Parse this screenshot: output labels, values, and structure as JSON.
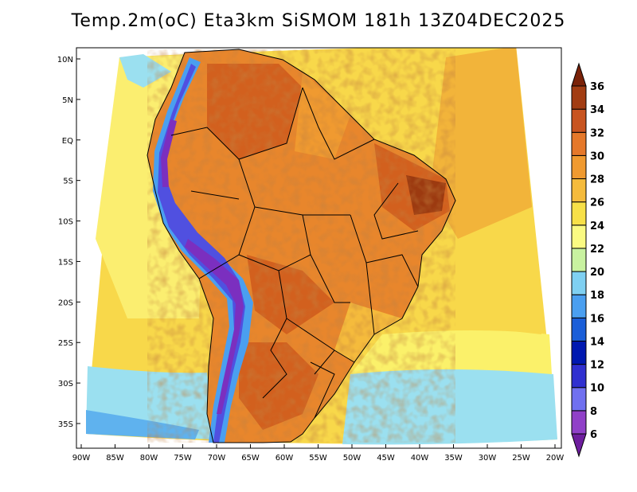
{
  "title": "Temp.2m(oC) Eta3km SiSMOM 181h 13Z04DEC2025",
  "colors": {
    "ocean_warm": "#f2b43a",
    "ocean_mid": "#f8d84a",
    "ocean_cool": "#fbf16a",
    "ocean_cold": "#9be0f0",
    "ocean_colder": "#5fb2ee",
    "land_hot": "#e8862c",
    "land_hotter": "#d2601e",
    "land_hottest": "#9c3a10",
    "andes_cold": "#7b2fbf",
    "andes_mid": "#5050e0",
    "border": "#000000"
  },
  "axes": {
    "x_ticks": [
      "90W",
      "85W",
      "80W",
      "75W",
      "70W",
      "65W",
      "60W",
      "55W",
      "50W",
      "45W",
      "40W",
      "35W",
      "30W",
      "25W",
      "20W"
    ],
    "y_ticks": [
      "10N",
      "5N",
      "EQ",
      "5S",
      "10S",
      "15S",
      "20S",
      "25S",
      "30S",
      "35S"
    ]
  },
  "chart_data": {
    "type": "heatmap",
    "variable": "Temp.2m",
    "units": "oC",
    "model": "Eta3km SiSMOM",
    "forecast_hour": "181h",
    "valid_time": "13Z04DEC2025",
    "lon_range": [
      -91,
      -20
    ],
    "lat_range": [
      -38,
      12
    ],
    "colorbar": {
      "levels": [
        6,
        8,
        10,
        12,
        14,
        16,
        18,
        20,
        22,
        24,
        26,
        28,
        30,
        32,
        34,
        36
      ],
      "colors": [
        "#6e1e9e",
        "#9040c8",
        "#7070f0",
        "#3030d0",
        "#0018b0",
        "#1a5ed8",
        "#4a9ff0",
        "#7fd0f2",
        "#c8f2a0",
        "#fafa82",
        "#f7e048",
        "#f5bb3c",
        "#f09a30",
        "#e5782a",
        "#c85420",
        "#a23c12",
        "#7a2208"
      ],
      "extend": "both"
    }
  }
}
